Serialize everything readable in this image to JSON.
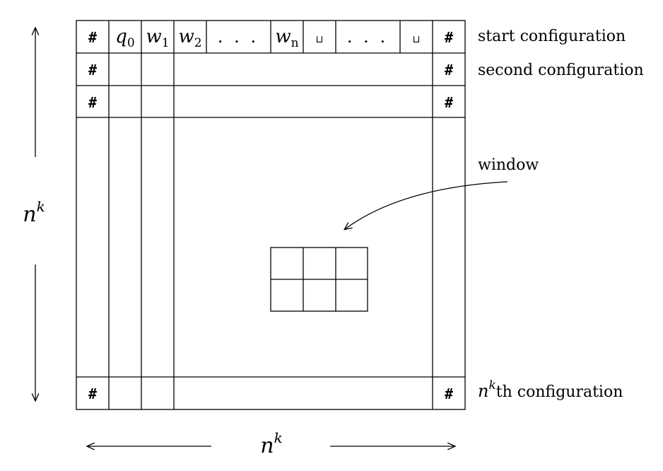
{
  "top_row": {
    "hash": "#",
    "q": "q",
    "q_sub": "0",
    "w": "w",
    "w1_sub": "1",
    "w2_sub": "2",
    "wn_sub": "n",
    "dots": ". . .",
    "blank": "⊔"
  },
  "hash": "#",
  "labels": {
    "start": "start configuration",
    "second": "second configuration",
    "window": "window",
    "nk_base": "n",
    "nk_exp": "k",
    "nkth_suffix": "th configuration"
  }
}
